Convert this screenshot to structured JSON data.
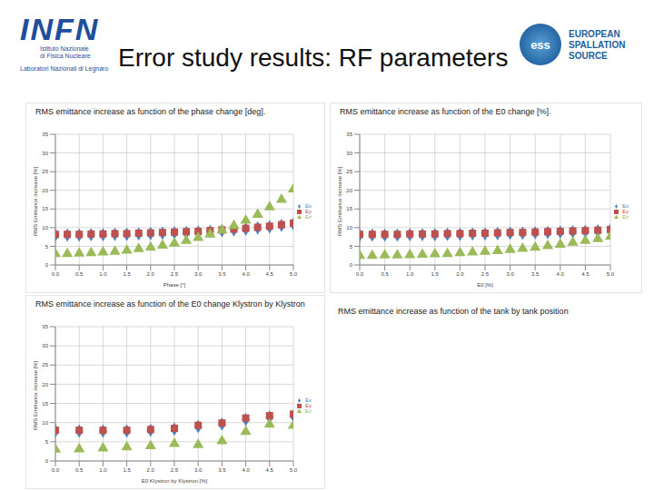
{
  "header": {
    "title": "Error study results: RF parameters",
    "left_logo": {
      "name": "INFN",
      "lines": [
        "Istituto Nazionale",
        "di Fisica Nucleare",
        "Laboratori Nazionali di Legnaro"
      ]
    },
    "right_logo": {
      "name": "ess",
      "lines": [
        "EUROPEAN",
        "SPALLATION",
        "SOURCE"
      ]
    }
  },
  "panels_without_chart": [
    "RMS emittance increase as function of the tank by tank position"
  ],
  "chart_data": [
    {
      "type": "scatter",
      "title": "RMS emittance increase as function of the phase change [deg].",
      "x_label": "Phase [°]",
      "y_label": "RMS Emittance increase [%]",
      "x": [
        0,
        0.25,
        0.5,
        0.75,
        1,
        1.25,
        1.5,
        1.75,
        2,
        2.25,
        2.5,
        2.75,
        3,
        3.25,
        3.5,
        3.75,
        4,
        4.25,
        4.5,
        4.75,
        5
      ],
      "series": [
        {
          "name": "Ex",
          "color": "#4f81bd",
          "marker": "diamond",
          "values": [
            8.0,
            8.0,
            8.0,
            8.1,
            8.1,
            8.2,
            8.2,
            8.3,
            8.4,
            8.5,
            8.6,
            8.7,
            8.8,
            9.0,
            9.2,
            9.4,
            9.6,
            9.9,
            10.2,
            10.6,
            11.0
          ]
        },
        {
          "name": "Ey",
          "color": "#c0504d",
          "marker": "square",
          "values": [
            8.2,
            8.2,
            8.2,
            8.3,
            8.3,
            8.4,
            8.4,
            8.5,
            8.6,
            8.7,
            8.8,
            8.9,
            9.0,
            9.2,
            9.4,
            9.6,
            9.8,
            10.1,
            10.4,
            10.8,
            11.2
          ]
        },
        {
          "name": "Ez",
          "color": "#9bbb59",
          "marker": "triangle",
          "values": [
            3.0,
            3.0,
            3.1,
            3.2,
            3.4,
            3.6,
            3.9,
            4.3,
            4.7,
            5.2,
            5.8,
            6.5,
            7.3,
            8.2,
            9.3,
            10.5,
            11.9,
            13.5,
            15.5,
            17.5,
            20.3
          ]
        }
      ],
      "xlim": [
        0,
        5
      ],
      "xticks": [
        {
          "value": 0,
          "label": "0.0"
        },
        {
          "value": 0.5,
          "label": "0.5"
        },
        {
          "value": 1,
          "label": "1.0"
        },
        {
          "value": 1.5,
          "label": "1.5"
        },
        {
          "value": 2,
          "label": "2.0"
        },
        {
          "value": 2.5,
          "label": "2.5"
        },
        {
          "value": 3,
          "label": "3.0"
        },
        {
          "value": 3.5,
          "label": "3.5"
        },
        {
          "value": 4,
          "label": "4.0"
        },
        {
          "value": 4.5,
          "label": "4.5"
        },
        {
          "value": 5,
          "label": "5.0"
        }
      ],
      "ylim": [
        0,
        35
      ],
      "yticks": [
        0,
        5,
        10,
        15,
        20,
        25,
        30,
        35
      ],
      "grid": true,
      "legend": "right"
    },
    {
      "type": "scatter",
      "title": "RMS emittance increase as function of the E0 change [%].",
      "x_label": "E0 [%]",
      "y_label": "RMS Emittance increase [%]",
      "x": [
        0,
        0.25,
        0.5,
        0.75,
        1,
        1.25,
        1.5,
        1.75,
        2,
        2.25,
        2.5,
        2.75,
        3,
        3.25,
        3.5,
        3.75,
        4,
        4.25,
        4.5,
        4.75,
        5
      ],
      "series": [
        {
          "name": "Ex",
          "color": "#4f81bd",
          "marker": "diamond",
          "values": [
            8.0,
            8.0,
            8.0,
            8.0,
            8.1,
            8.1,
            8.1,
            8.2,
            8.2,
            8.3,
            8.3,
            8.4,
            8.5,
            8.5,
            8.6,
            8.7,
            8.8,
            8.9,
            9.0,
            9.1,
            9.3
          ]
        },
        {
          "name": "Ey",
          "color": "#c0504d",
          "marker": "square",
          "values": [
            8.2,
            8.2,
            8.2,
            8.2,
            8.3,
            8.3,
            8.3,
            8.4,
            8.4,
            8.5,
            8.5,
            8.6,
            8.7,
            8.7,
            8.8,
            8.9,
            9.0,
            9.1,
            9.2,
            9.3,
            9.5
          ]
        },
        {
          "name": "Ez",
          "color": "#9bbb59",
          "marker": "triangle",
          "values": [
            2.5,
            2.5,
            2.6,
            2.6,
            2.7,
            2.8,
            2.9,
            3.0,
            3.2,
            3.4,
            3.6,
            3.8,
            4.1,
            4.4,
            4.7,
            5.1,
            5.5,
            6.0,
            6.5,
            7.0,
            7.6
          ]
        }
      ],
      "xlim": [
        0,
        5
      ],
      "xticks": [
        {
          "value": 0,
          "label": "0.0"
        },
        {
          "value": 0.5,
          "label": "0.5"
        },
        {
          "value": 1,
          "label": "1.0"
        },
        {
          "value": 1.5,
          "label": "1.5"
        },
        {
          "value": 2,
          "label": "2.0"
        },
        {
          "value": 2.5,
          "label": "2.5"
        },
        {
          "value": 3,
          "label": "3.0"
        },
        {
          "value": 3.5,
          "label": "3.5"
        },
        {
          "value": 4,
          "label": "4.0"
        },
        {
          "value": 4.5,
          "label": "4.5"
        },
        {
          "value": 5,
          "label": "5.0"
        }
      ],
      "ylim": [
        0,
        35
      ],
      "yticks": [
        0,
        5,
        10,
        15,
        20,
        25,
        30,
        35
      ],
      "grid": true,
      "legend": "right"
    },
    {
      "type": "scatter",
      "title": "RMS emittance increase as function of the E0 change Klystron by Klystron",
      "x_label": "E0 Klystron by Klystron [%]",
      "y_label": "RMS Emittance increase [%]",
      "x": [
        0,
        0.5,
        1,
        1.5,
        2,
        2.5,
        3,
        3.5,
        4,
        4.5,
        5
      ],
      "series": [
        {
          "name": "Ex",
          "color": "#4f81bd",
          "marker": "diamond",
          "values": [
            7.8,
            7.8,
            7.8,
            7.8,
            8.0,
            8.3,
            9.0,
            9.6,
            10.8,
            11.4,
            11.8
          ]
        },
        {
          "name": "Ey",
          "color": "#c0504d",
          "marker": "square",
          "values": [
            8.0,
            8.0,
            8.0,
            8.0,
            8.2,
            8.5,
            9.3,
            9.9,
            11.2,
            11.8,
            12.2
          ]
        },
        {
          "name": "Ez",
          "color": "#9bbb59",
          "marker": "triangle",
          "values": [
            3.0,
            3.1,
            3.3,
            3.6,
            3.9,
            4.5,
            4.2,
            5.2,
            7.6,
            9.5,
            9.2
          ]
        }
      ],
      "xlim": [
        0,
        5
      ],
      "xticks": [
        {
          "value": 0,
          "label": "0.0"
        },
        {
          "value": 0.5,
          "label": "0.5"
        },
        {
          "value": 1,
          "label": "1.0"
        },
        {
          "value": 1.5,
          "label": "1.5"
        },
        {
          "value": 2,
          "label": "2.0"
        },
        {
          "value": 2.5,
          "label": "2.5"
        },
        {
          "value": 3,
          "label": "3.0"
        },
        {
          "value": 3.5,
          "label": "3.5"
        },
        {
          "value": 4,
          "label": "4.0"
        },
        {
          "value": 4.5,
          "label": "4.5"
        },
        {
          "value": 5,
          "label": "5.0"
        }
      ],
      "ylim": [
        0,
        35
      ],
      "yticks": [
        0,
        5,
        10,
        15,
        20,
        25,
        30,
        35
      ],
      "grid": true,
      "legend": "right"
    }
  ]
}
